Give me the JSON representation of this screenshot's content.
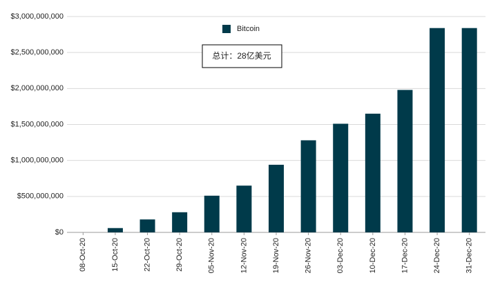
{
  "chart_data": {
    "type": "bar",
    "categories": [
      "08-Oct-20",
      "15-Oct-20",
      "22-Oct-20",
      "29-Oct-20",
      "05-Nov-20",
      "12-Nov-20",
      "19-Nov-20",
      "26-Nov-20",
      "03-Dec-20",
      "10-Dec-20",
      "17-Dec-20",
      "24-Dec-20",
      "31-Dec-20"
    ],
    "series": [
      {
        "name": "Bitcoin",
        "color": "#003a4a",
        "values": [
          0,
          60000000,
          180000000,
          280000000,
          510000000,
          650000000,
          940000000,
          1280000000,
          1510000000,
          1650000000,
          1980000000,
          2840000000,
          2840000000
        ]
      }
    ],
    "annotation": "总计：28亿美元",
    "ylim": [
      0,
      3000000000
    ],
    "yticks": [
      {
        "value": 0,
        "label": "$0"
      },
      {
        "value": 500000000,
        "label": "$500,000,000"
      },
      {
        "value": 1000000000,
        "label": "$1,000,000,000"
      },
      {
        "value": 1500000000,
        "label": "$1,500,000,000"
      },
      {
        "value": 2000000000,
        "label": "$2,000,000,000"
      },
      {
        "value": 2500000000,
        "label": "$2,500,000,000"
      },
      {
        "value": 3000000000,
        "label": "$3,000,000,000"
      }
    ],
    "grid": true
  }
}
